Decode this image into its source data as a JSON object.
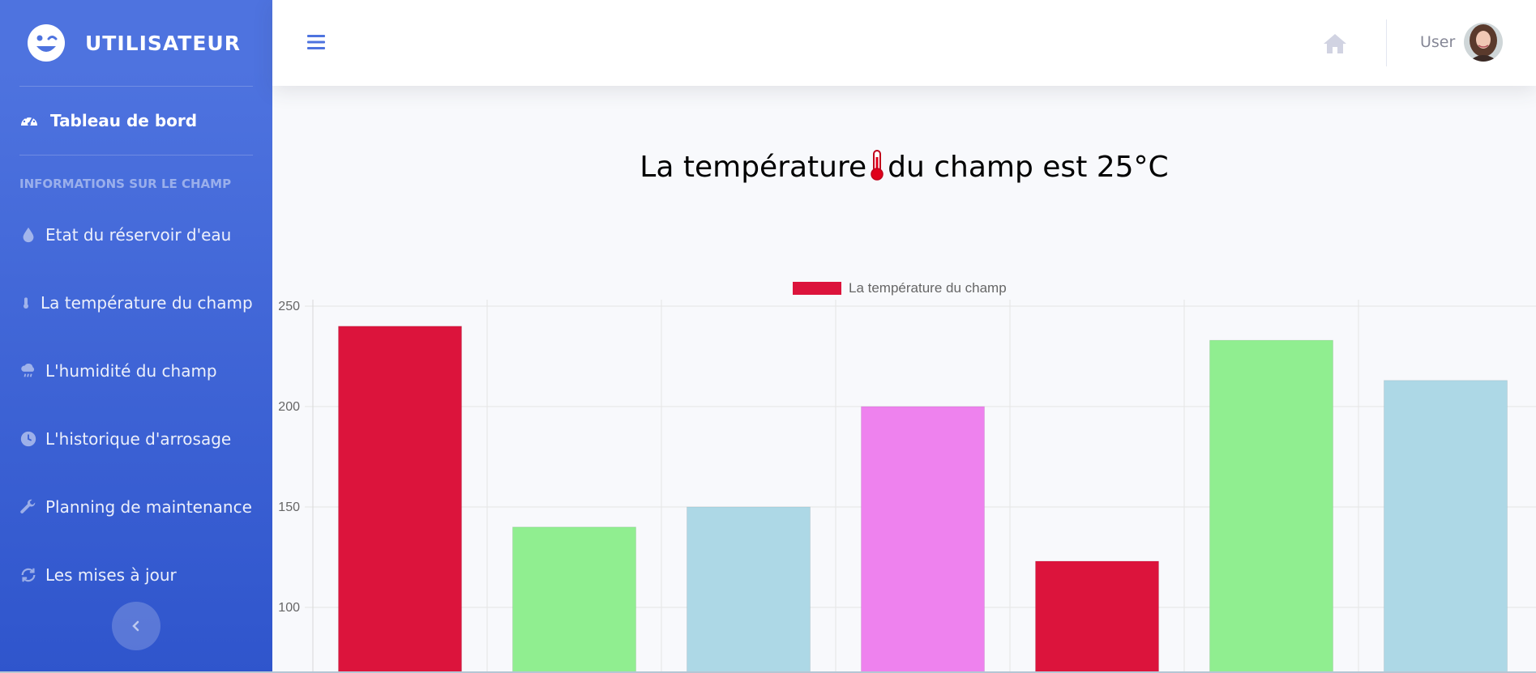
{
  "sidebar": {
    "brand": "UTILISATEUR",
    "active_item": "Tableau de bord",
    "heading": "INFORMATIONS SUR LE CHAMP",
    "items": [
      {
        "label": "Etat du réservoir d'eau",
        "icon": "water-drop-icon"
      },
      {
        "label": "La température du champ",
        "icon": "thermometer-icon"
      },
      {
        "label": "L'humidité du champ",
        "icon": "cloud-rain-icon"
      },
      {
        "label": "L'historique d'arrosage",
        "icon": "clock-icon"
      },
      {
        "label": "Planning de maintenance",
        "icon": "wrench-icon"
      },
      {
        "label": "Les mises à jour",
        "icon": "sync-icon"
      }
    ]
  },
  "topbar": {
    "user_label": "User"
  },
  "main": {
    "title_before": "La température",
    "title_after": "du champ est 25°C"
  },
  "colors": {
    "sidebar_top": "#4e73df",
    "sidebar_bottom": "#2f55cc"
  },
  "chart_data": {
    "type": "bar",
    "legend": "La température du champ",
    "legend_color": "#dc143c",
    "values": [
      240,
      140,
      150,
      200,
      123,
      233,
      213
    ],
    "colors": [
      "#dc143c",
      "#90ee90",
      "#add8e6",
      "#ee82ee",
      "#dc143c",
      "#90ee90",
      "#add8e6"
    ],
    "yticks": [
      100,
      150,
      200,
      250
    ],
    "ylim": [
      80,
      250
    ]
  }
}
